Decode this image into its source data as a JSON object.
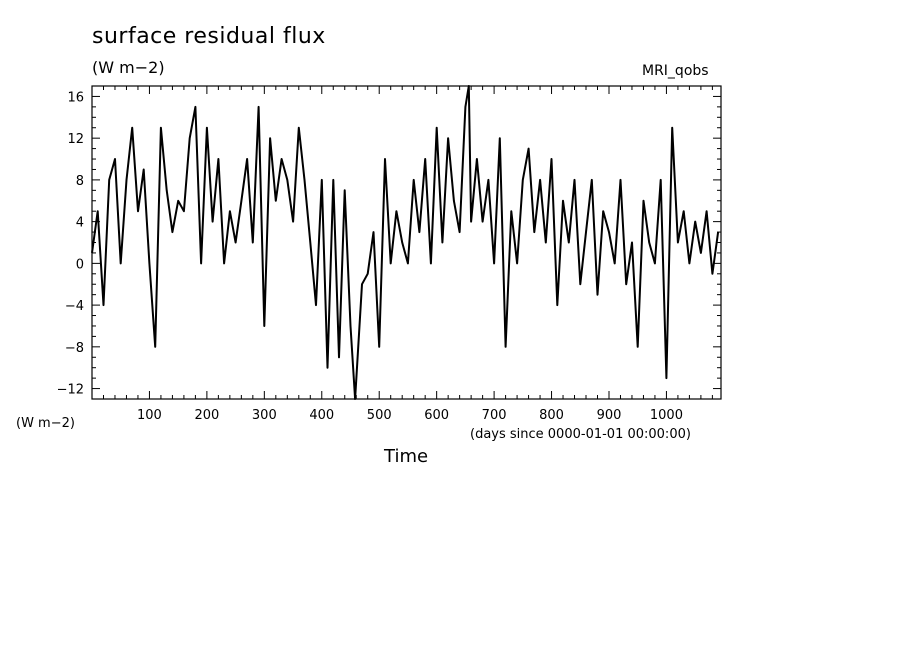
{
  "chart_data": {
    "type": "line",
    "title": "surface residual flux",
    "subtitle": "(W m−2)",
    "dataset_label": "MRI_qobs",
    "ylabel_unit": "(W m−2)",
    "xlabel": "Time",
    "xlabel_unit": "(days since 0000-01-01 00:00:00)",
    "xlim": [
      0,
      1095
    ],
    "ylim": [
      -13,
      17
    ],
    "xticks": [
      100,
      200,
      300,
      400,
      500,
      600,
      700,
      800,
      900,
      1000
    ],
    "xtick_labels": [
      "100",
      "200",
      "300",
      "400",
      "500",
      "600",
      "700",
      "800",
      "900",
      "1000"
    ],
    "yticks": [
      -12,
      -8,
      -4,
      0,
      4,
      8,
      12,
      16
    ],
    "ytick_labels": [
      "−12",
      "−8",
      "−4",
      "0",
      "4",
      "8",
      "12",
      "16"
    ],
    "line_color": "#000000",
    "series": [
      {
        "x": [
          0,
          10,
          20,
          30,
          40,
          50,
          60,
          70,
          80,
          90,
          100,
          110,
          120,
          130,
          140,
          150,
          160,
          170,
          180,
          190,
          200,
          210,
          220,
          230,
          240,
          250,
          260,
          270,
          280,
          290,
          300,
          310,
          320,
          330,
          340,
          350,
          360,
          370,
          380,
          390,
          400,
          410,
          420,
          430,
          440,
          450,
          458,
          470,
          480,
          490,
          500,
          510,
          520,
          530,
          540,
          550,
          560,
          570,
          580,
          590,
          600,
          610,
          620,
          630,
          640,
          650,
          656,
          660,
          670,
          680,
          690,
          700,
          710,
          720,
          730,
          740,
          750,
          760,
          770,
          780,
          790,
          800,
          810,
          820,
          830,
          840,
          850,
          860,
          870,
          880,
          890,
          900,
          910,
          920,
          930,
          940,
          950,
          960,
          970,
          980,
          990,
          1000,
          1010,
          1020,
          1030,
          1040,
          1050,
          1060,
          1070,
          1080,
          1090
        ],
        "y": [
          1,
          5,
          -4,
          8,
          10,
          0,
          8,
          13,
          5,
          9,
          0,
          -8,
          13,
          7,
          3,
          6,
          5,
          12,
          15,
          0,
          13,
          4,
          10,
          0,
          5,
          2,
          6,
          10,
          2,
          15,
          -6,
          12,
          6,
          10,
          8,
          4,
          13,
          8,
          2,
          -4,
          8,
          -10,
          8,
          -9,
          7,
          -6,
          -13,
          -2,
          -1,
          3,
          -8,
          10,
          0,
          5,
          2,
          0,
          8,
          3,
          10,
          0,
          13,
          2,
          12,
          6,
          3,
          15,
          17,
          4,
          10,
          4,
          8,
          0,
          12,
          -8,
          5,
          0,
          8,
          11,
          3,
          8,
          2,
          10,
          -4,
          6,
          2,
          8,
          -2,
          3,
          8,
          -3,
          5,
          3,
          0,
          8,
          -2,
          2,
          -8,
          6,
          2,
          0,
          8,
          -11,
          13,
          2,
          5,
          0,
          4,
          1,
          5,
          -1,
          3
        ]
      }
    ]
  }
}
